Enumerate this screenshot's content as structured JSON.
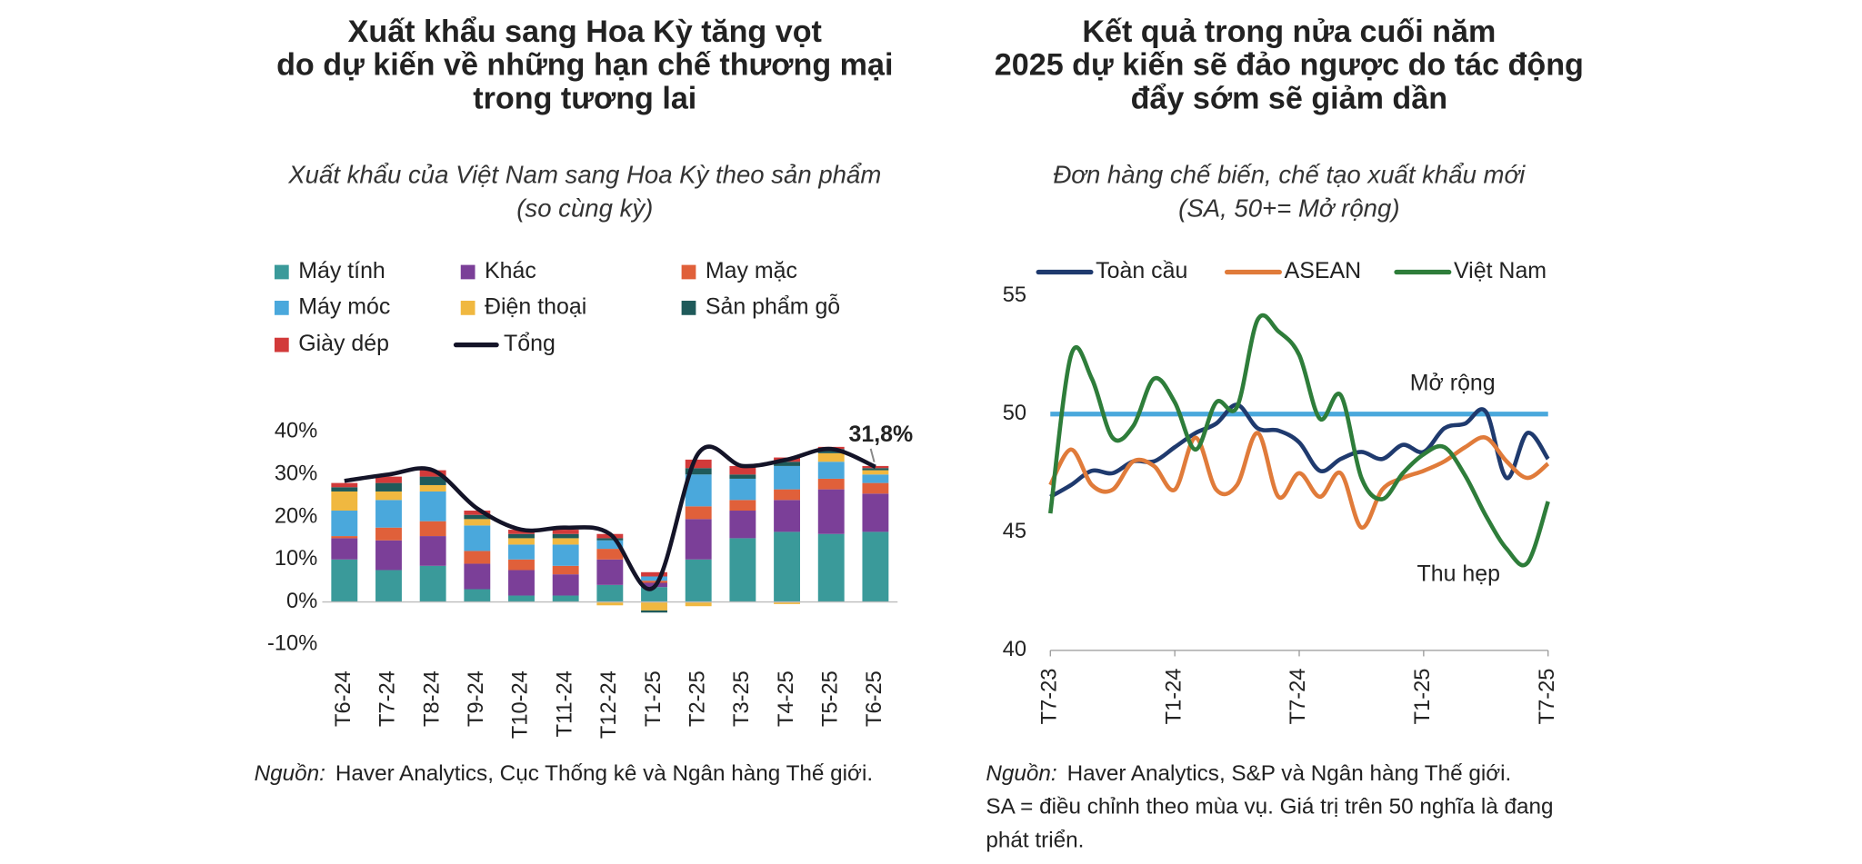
{
  "chart_data": [
    {
      "type": "bar",
      "title": [
        "Xuất khẩu sang Hoa Kỳ tăng vọt",
        "do dự kiến về những hạn chế thương mại",
        "trong tương lai"
      ],
      "subtitle": [
        "Xuất khẩu của Việt Nam sang Hoa Kỳ theo sản phẩm",
        "(so cùng kỳ)"
      ],
      "categories": [
        "T6-24",
        "T7-24",
        "T8-24",
        "T9-24",
        "T10-24",
        "T11-24",
        "T12-24",
        "T1-25",
        "T2-25",
        "T3-25",
        "T4-25",
        "T5-25",
        "T6-25"
      ],
      "series": [
        {
          "name": "Máy tính",
          "color": "#3a9a9a",
          "values": [
            10,
            7.5,
            8.5,
            3,
            1.5,
            1.5,
            4,
            3.5,
            10,
            15,
            16.5,
            16,
            16.5
          ]
        },
        {
          "name": "Khác",
          "color": "#7b3f98",
          "values": [
            5,
            7,
            7,
            6,
            6,
            5,
            6,
            1,
            9.5,
            6.5,
            7.5,
            10.5,
            9
          ]
        },
        {
          "name": "May mặc",
          "color": "#e0603a",
          "values": [
            0.5,
            3,
            3.5,
            3,
            2.5,
            2,
            2.5,
            0.5,
            3,
            2.5,
            2.5,
            2.5,
            2.5
          ]
        },
        {
          "name": "Máy móc",
          "color": "#4aa8dc",
          "values": [
            6,
            6.5,
            7,
            6,
            3.5,
            5,
            2,
            1,
            7.5,
            5,
            5.5,
            4,
            2
          ]
        },
        {
          "name": "Điện thoại",
          "color": "#f0b840",
          "values": [
            4.5,
            2,
            1.5,
            1.5,
            1.5,
            1.5,
            -0.8,
            -2,
            -1,
            0,
            -0.5,
            2,
            1
          ]
        },
        {
          "name": "Sản phẩm gỗ",
          "color": "#1f5a5a",
          "values": [
            1,
            2,
            2,
            1,
            1,
            1,
            0.5,
            -0.5,
            1.5,
            1,
            1,
            1,
            0.5
          ]
        },
        {
          "name": "Giày dép",
          "color": "#d23a3a",
          "values": [
            1,
            1.5,
            1.5,
            1,
            1,
            1,
            1,
            1,
            2,
            2,
            1,
            0.5,
            0.5
          ]
        }
      ],
      "line_series": {
        "name": "Tổng",
        "color": "#141428",
        "values": [
          28.5,
          30,
          31,
          22,
          17,
          17.5,
          16,
          3.5,
          35,
          32,
          33.5,
          36,
          31.8
        ]
      },
      "annotation": "31,8%",
      "ylim": [
        -10,
        40
      ],
      "yticks": [
        {
          "value": -10,
          "label": "-10%"
        },
        {
          "value": 0,
          "label": "0%"
        },
        {
          "value": 10,
          "label": "10%"
        },
        {
          "value": 20,
          "label": "20%"
        },
        {
          "value": 30,
          "label": "30%"
        },
        {
          "value": 40,
          "label": "40%"
        }
      ],
      "source_label": "Nguồn:",
      "source_text": [
        "Haver Analytics, Cục Thống kê và Ngân hàng Thế giới."
      ]
    },
    {
      "type": "line",
      "title": [
        "Kết quả trong nửa cuối năm",
        "2025 dự kiến sẽ đảo ngược do tác động",
        "đẩy sớm sẽ giảm dần"
      ],
      "subtitle": [
        "Đơn hàng chế biến, chế tạo xuất khẩu mới",
        "(SA, 50+= Mở rộng)"
      ],
      "categories": [
        "T7-23",
        null,
        null,
        null,
        null,
        null,
        "T1-24",
        null,
        null,
        null,
        null,
        null,
        "T7-24",
        null,
        null,
        null,
        null,
        null,
        "T1-25",
        null,
        null,
        null,
        null,
        null,
        "T7-25"
      ],
      "series": [
        {
          "name": "Toàn cầu",
          "color": "#1f3a6e",
          "values": [
            46.5,
            47.0,
            47.6,
            47.5,
            48.0,
            48.0,
            48.6,
            49.2,
            49.6,
            50.4,
            49.4,
            49.3,
            48.8,
            47.6,
            48.1,
            48.4,
            48.1,
            48.7,
            48.4,
            49.4,
            49.6,
            50.1,
            47.3,
            49.2,
            48.1
          ]
        },
        {
          "name": "ASEAN",
          "color": "#e07b3a",
          "values": [
            47.0,
            48.5,
            47.0,
            46.8,
            48.0,
            47.8,
            46.8,
            49.0,
            46.8,
            47.0,
            49.2,
            46.5,
            47.5,
            46.5,
            47.5,
            45.2,
            46.8,
            47.3,
            47.6,
            48.0,
            48.6,
            49.0,
            48.0,
            47.3,
            47.9
          ]
        },
        {
          "name": "Việt Nam",
          "color": "#2e7d3a",
          "values": [
            45.8,
            52.5,
            51.5,
            49.0,
            49.5,
            51.5,
            50.5,
            48.5,
            50.5,
            50.3,
            54.0,
            53.5,
            52.5,
            49.8,
            50.8,
            47.3,
            46.4,
            47.5,
            48.3,
            48.6,
            47.4,
            45.7,
            44.3,
            43.7,
            46.3
          ]
        }
      ],
      "reference": {
        "value": 50,
        "label": "Mở rộng",
        "color": "#4aa8dc"
      },
      "annotation": "Thu hẹp",
      "ylim": [
        40,
        55
      ],
      "yticks": [
        40,
        45,
        50,
        55
      ],
      "source_label": "Nguồn:",
      "source_text": [
        "Haver Analytics, S&P và Ngân hàng Thế giới.",
        "SA = điều chỉnh theo mùa vụ. Giá trị trên 50 nghĩa là đang",
        "phát triển."
      ]
    }
  ]
}
